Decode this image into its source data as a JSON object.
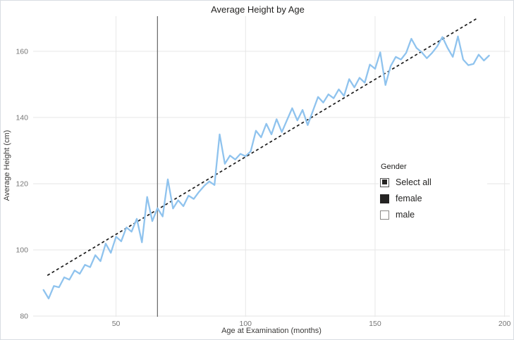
{
  "title": "Average Height by Age",
  "chart_data": {
    "type": "line",
    "title": "Average Height by Age",
    "xlabel": "Age at Examination (months)",
    "ylabel": "Average Height (cm)",
    "xlim": [
      18,
      202
    ],
    "ylim": [
      79.8,
      170.6
    ],
    "x_ticks": [
      50,
      100,
      150,
      200
    ],
    "y_ticks": [
      80,
      100,
      120,
      140,
      160
    ],
    "grid": true,
    "legend_position": "right-overlay",
    "series": [
      {
        "name": "average height",
        "color": "#8FC3EE",
        "points": [
          [
            22,
            87.9
          ],
          [
            24,
            85.3
          ],
          [
            26,
            89.1
          ],
          [
            28,
            88.7
          ],
          [
            30,
            91.7
          ],
          [
            32,
            91.0
          ],
          [
            34,
            93.8
          ],
          [
            36,
            92.8
          ],
          [
            38,
            95.5
          ],
          [
            40,
            94.8
          ],
          [
            42,
            98.4
          ],
          [
            44,
            96.6
          ],
          [
            46,
            101.9
          ],
          [
            48,
            99.1
          ],
          [
            50,
            104.0
          ],
          [
            52,
            102.6
          ],
          [
            54,
            106.8
          ],
          [
            56,
            105.5
          ],
          [
            58,
            109.4
          ],
          [
            60,
            102.3
          ],
          [
            62,
            116.0
          ],
          [
            64,
            108.7
          ],
          [
            66,
            112.6
          ],
          [
            68,
            110.1
          ],
          [
            70,
            121.3
          ],
          [
            72,
            112.5
          ],
          [
            74,
            115.0
          ],
          [
            76,
            113.2
          ],
          [
            78,
            116.4
          ],
          [
            80,
            115.4
          ],
          [
            82,
            117.5
          ],
          [
            84,
            119.3
          ],
          [
            86,
            120.7
          ],
          [
            88,
            119.6
          ],
          [
            90,
            134.9
          ],
          [
            92,
            126.0
          ],
          [
            94,
            128.5
          ],
          [
            96,
            127.3
          ],
          [
            98,
            129.0
          ],
          [
            100,
            128.3
          ],
          [
            102,
            129.8
          ],
          [
            104,
            136.0
          ],
          [
            106,
            134.0
          ],
          [
            108,
            138.1
          ],
          [
            110,
            134.9
          ],
          [
            112,
            139.5
          ],
          [
            114,
            135.6
          ],
          [
            116,
            139.2
          ],
          [
            118,
            142.8
          ],
          [
            120,
            139.1
          ],
          [
            122,
            142.3
          ],
          [
            124,
            137.7
          ],
          [
            126,
            142.0
          ],
          [
            128,
            146.2
          ],
          [
            130,
            144.5
          ],
          [
            132,
            147.0
          ],
          [
            134,
            145.8
          ],
          [
            136,
            148.5
          ],
          [
            138,
            146.5
          ],
          [
            140,
            151.6
          ],
          [
            142,
            149.1
          ],
          [
            144,
            152.0
          ],
          [
            146,
            150.5
          ],
          [
            148,
            156.0
          ],
          [
            150,
            154.7
          ],
          [
            152,
            159.7
          ],
          [
            154,
            149.8
          ],
          [
            156,
            155.5
          ],
          [
            158,
            158.3
          ],
          [
            160,
            157.5
          ],
          [
            162,
            159.5
          ],
          [
            164,
            163.8
          ],
          [
            166,
            161.0
          ],
          [
            168,
            159.7
          ],
          [
            170,
            157.9
          ],
          [
            172,
            159.5
          ],
          [
            174,
            161.5
          ],
          [
            176,
            164.3
          ],
          [
            178,
            161.0
          ],
          [
            180,
            158.3
          ],
          [
            182,
            164.5
          ],
          [
            184,
            157.5
          ],
          [
            186,
            155.8
          ],
          [
            188,
            156.2
          ],
          [
            190,
            159.0
          ],
          [
            192,
            157.2
          ],
          [
            194,
            158.7
          ]
        ]
      }
    ],
    "trend_line": {
      "style": "dashed",
      "color": "#1a1a1a",
      "from": [
        23.5,
        92.3
      ],
      "to": [
        189.5,
        170.0
      ]
    },
    "reference_line": {
      "x": 66,
      "color": "#666666"
    }
  },
  "legend": {
    "title": "Gender",
    "items": [
      {
        "label": "Select all",
        "state": "indeterminate"
      },
      {
        "label": "female",
        "state": "checked"
      },
      {
        "label": "male",
        "state": "unchecked"
      }
    ]
  },
  "colors": {
    "line": "#8FC3EE",
    "trend": "#1a1a1a",
    "reference": "#666666",
    "grid": "#e6e6e6",
    "tick_text": "#767676",
    "title_text": "#252423"
  }
}
